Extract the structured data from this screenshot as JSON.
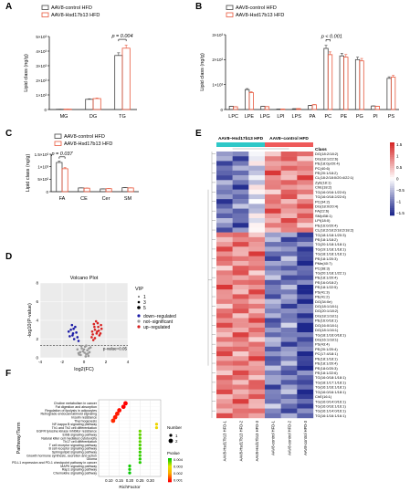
{
  "chart_data": [
    {
      "panel": "A",
      "type": "bar",
      "ylabel": "Lipid class (ng/g)",
      "ylim": [
        0,
        5000
      ],
      "yticks": [
        0,
        1000,
        2000,
        3000,
        4000,
        5000
      ],
      "ytick_labels": [
        "0",
        "1×10³",
        "2×10³",
        "3×10³",
        "4×10³",
        "5×10³"
      ],
      "categories": [
        "MG",
        "DG",
        "TG"
      ],
      "series": [
        {
          "name": "AAV8-control HFD",
          "color": "#444444",
          "values": [
            20,
            700,
            3700
          ]
        },
        {
          "name": "AAV8-Hsd17b13 HFD",
          "color": "#e8573c",
          "values": [
            25,
            750,
            4200
          ]
        }
      ],
      "annotations": [
        {
          "category": "TG",
          "text": "p = 0.004"
        }
      ]
    },
    {
      "panel": "B",
      "type": "bar",
      "ylabel": "Lipid class (ng/g)",
      "ylim": [
        0,
        3000
      ],
      "yticks": [
        0,
        1000,
        2000,
        3000
      ],
      "ytick_labels": [
        "0",
        "1×10³",
        "2×10³",
        "3×10³"
      ],
      "categories": [
        "LPC",
        "LPE",
        "LPG",
        "LPI",
        "LPS",
        "PA",
        "PC",
        "PE",
        "PG",
        "PI",
        "PS"
      ],
      "series": [
        {
          "name": "AAV8-control HFD",
          "color": "#444444",
          "values": [
            130,
            800,
            130,
            20,
            30,
            160,
            2450,
            2150,
            2000,
            140,
            1250
          ]
        },
        {
          "name": "AAV8-Hsd17b13 HFD",
          "color": "#e8573c",
          "values": [
            110,
            680,
            115,
            18,
            35,
            190,
            2200,
            2100,
            1950,
            130,
            1300
          ]
        }
      ],
      "annotations": [
        {
          "category": "PC",
          "text": "p < 0.001"
        }
      ]
    },
    {
      "panel": "C",
      "type": "bar",
      "ylabel": "Lipid class (ng/g)",
      "ylim": [
        0,
        1500
      ],
      "yticks": [
        0,
        500,
        1000,
        1500
      ],
      "ytick_labels": [
        "0",
        "5×10²",
        "1×10³",
        "1.5×10³"
      ],
      "categories": [
        "FA",
        "CE",
        "Cer",
        "SM"
      ],
      "series": [
        {
          "name": "AAV8-control HFD",
          "color": "#444444",
          "values": [
            1170,
            150,
            110,
            160
          ]
        },
        {
          "name": "AAV8-Hsd17b13 HFD",
          "color": "#e8573c",
          "values": [
            920,
            140,
            120,
            150
          ]
        }
      ],
      "annotations": [
        {
          "category": "FA",
          "text": "p = 0.037"
        }
      ]
    },
    {
      "panel": "D",
      "type": "scatter",
      "title": "Volcano Plot",
      "xlabel": "log2(FC)",
      "ylabel": "-log10(P-value)",
      "xlim": [
        -4,
        4
      ],
      "ylim": [
        0,
        8
      ],
      "xticks": [
        -4,
        -2,
        0,
        2,
        4
      ],
      "yticks": [
        0,
        2,
        4,
        6,
        8
      ],
      "threshold_label": "p-value=0.05",
      "legend_title": "VIP",
      "size_legend": [
        "1",
        "3",
        "5"
      ],
      "legend": [
        {
          "label": "down−regulated",
          "color": "#1a1aa6"
        },
        {
          "label": "not−significant",
          "color": "#9a9a9a"
        },
        {
          "label": "up−regulated",
          "color": "#d8201f"
        }
      ],
      "points": {
        "down": [
          [
            -1.2,
            3.0
          ],
          [
            -1.0,
            2.6
          ],
          [
            -0.8,
            3.3
          ],
          [
            -0.6,
            2.2
          ],
          [
            -1.4,
            2.8
          ],
          [
            -0.9,
            2.0
          ],
          [
            -1.1,
            3.5
          ],
          [
            -0.7,
            2.7
          ],
          [
            -1.3,
            2.3
          ],
          [
            -0.5,
            1.8
          ],
          [
            -0.95,
            3.1
          ],
          [
            -1.05,
            2.4
          ]
        ],
        "ns": [
          [
            -0.5,
            0.5
          ],
          [
            -0.3,
            0.3
          ],
          [
            0.2,
            0.4
          ],
          [
            0.3,
            0.8
          ],
          [
            -0.2,
            1.0
          ],
          [
            0.1,
            1.2
          ],
          [
            0.5,
            0.6
          ],
          [
            0.6,
            1.1
          ],
          [
            -0.6,
            0.9
          ],
          [
            0.4,
            0.2
          ],
          [
            -0.1,
            0.7
          ],
          [
            0.0,
            0.9
          ],
          [
            0.2,
            1.3
          ],
          [
            -0.35,
            0.6
          ],
          [
            0.45,
            1.0
          ],
          [
            0.15,
            0.15
          ],
          [
            -0.25,
            1.25
          ],
          [
            0.35,
            0.45
          ],
          [
            -0.45,
            0.35
          ],
          [
            0.05,
            0.55
          ]
        ],
        "up": [
          [
            0.8,
            2.5
          ],
          [
            1.0,
            3.0
          ],
          [
            1.2,
            2.8
          ],
          [
            0.9,
            3.6
          ],
          [
            1.3,
            3.3
          ],
          [
            1.5,
            2.6
          ],
          [
            0.7,
            2.2
          ],
          [
            1.1,
            3.9
          ],
          [
            1.4,
            2.4
          ],
          [
            0.85,
            1.9
          ],
          [
            1.25,
            3.7
          ],
          [
            1.6,
            3.1
          ],
          [
            1.0,
            2.1
          ],
          [
            1.35,
            2.9
          ],
          [
            0.95,
            3.3
          ],
          [
            1.15,
            2.6
          ],
          [
            1.55,
            3.5
          ],
          [
            0.75,
            2.8
          ]
        ]
      }
    },
    {
      "panel": "E",
      "type": "heatmap",
      "group_labels": [
        "AAV8−Hsd17b13 HFD",
        "AAV8−control HFD"
      ],
      "columns": [
        "AAV8-Hsd17b13 HFD-1",
        "AAV8-Hsd17b13 HFD-2",
        "AAV8-Hsd17b13 HFD-3",
        "AAV8-control HFD-1",
        "AAV8-control HFD-2",
        "AAV8-control HFD-3"
      ],
      "rows_title": "Class",
      "rows": [
        "DG(18:2/18:2)",
        "DG(18:1/22:6)",
        "PE(18:0p/20:4)",
        "PC(40:6)",
        "PE(20:1/18:2)",
        "CL(18:2/18:0/20:4/22:1)",
        "ZyE(18:1)",
        "ChE(18:2)",
        "TG(16:0/16:1/22:6)",
        "TG(16:0/18:2/22:6)",
        "PC(34:2)",
        "DG(18:0/20:4)",
        "FA(22:6)",
        "SM(d38:1)",
        "LPI(18:0)",
        "PE(16:0/20:4)",
        "CL(18:2/18:2/18:2/18:2)",
        "TG(18:1/18:1/20:3)",
        "PE(18:1/18:2)",
        "TG(20:1/18:1/18:1)",
        "TG(19:1/18:1/18:1)",
        "TG(18:1/18:1/18:1)",
        "PE(18:1/20:3)",
        "PMe(40:7)",
        "PC(38:3)",
        "TG(20:1/18:1/22:1)",
        "PE(18:1/20:4)",
        "PE(16:0/18:2)",
        "PE(18:1/22:5)",
        "PS(41:3)",
        "PE(41:2)",
        "DG(34:0e)",
        "DG(18:1/18:1)",
        "DG(20:1/18:2)",
        "DG(18:1/18:1)",
        "PE(16:0/18:1)",
        "DG(16:0/18:1)",
        "DG(18:1/16:1)",
        "TG(18:1/16:0/18:1)",
        "DG(16:1/18:1)",
        "PS(43:4)",
        "PE(20:1/20:4)",
        "PC(17:4/18:1)",
        "PE(18:1/18:1)",
        "PE(18:1/20:4)",
        "PE(18:0/20:3)",
        "PE(18:1/22:6)",
        "TG(16:0/18:1/18:1)",
        "TG(18:1/17:1/18:1)",
        "TG(16:1/16:1/18:1)",
        "TG(16:0/16:1/18:1)",
        "ChE(16:1)",
        "TG(16:0/14:0/16:1)",
        "TG(16:0/16:1/16:1)",
        "TG(16:1/14:0/16:1)",
        "TG(16:1/16:1/16:1)"
      ],
      "colorbar_ticks": [
        "1.5",
        "1",
        "0.5",
        "0",
        "−0.5",
        "−1",
        "−1.5"
      ],
      "vmin": -1.6,
      "vmax": 1.6
    },
    {
      "panel": "F",
      "type": "scatter",
      "ylabel": "Pathway/Term",
      "xlabel": "RichFactor",
      "xlim": [
        0.05,
        0.35
      ],
      "xticks": [
        0.1,
        0.15,
        0.2,
        0.25,
        0.3
      ],
      "xtick_labels": [
        "0.10",
        "0.15",
        "0.20",
        "0.25",
        "0.30"
      ],
      "size_legend_title": "Number",
      "size_legend": [
        "1",
        "2"
      ],
      "color_legend_title": "Pvalue",
      "color_legend_ticks": [
        "0.004",
        "0.003",
        "0.002",
        "0.001"
      ],
      "terms": [
        {
          "name": "Choline metabolism in cancer",
          "x": 0.18,
          "number": 2,
          "p": 0.0004
        },
        {
          "name": "Fat digestion and absorption",
          "x": 0.17,
          "number": 2,
          "p": 0.0004
        },
        {
          "name": "Regulation of lipolysis in adipocytes",
          "x": 0.15,
          "number": 2,
          "p": 0.0005
        },
        {
          "name": "Retrograde endocannabinoid signaling",
          "x": 0.14,
          "number": 2,
          "p": 0.0006
        },
        {
          "name": "Insulin resistance",
          "x": 0.13,
          "number": 2,
          "p": 0.0006
        },
        {
          "name": "Thermogenesis",
          "x": 0.12,
          "number": 2,
          "p": 0.0007
        },
        {
          "name": "NF-kappa B signaling pathway",
          "x": 0.33,
          "number": 1,
          "p": 0.0025
        },
        {
          "name": "Th1 and Th2 cell differentiation",
          "x": 0.33,
          "number": 1,
          "p": 0.0026
        },
        {
          "name": "EGFR tyrosine kinase inhibitor resistance",
          "x": 0.25,
          "number": 1,
          "p": 0.0035
        },
        {
          "name": "ErbB signaling pathway",
          "x": 0.25,
          "number": 1,
          "p": 0.0036
        },
        {
          "name": "Natural killer cell mediated cytotoxicity",
          "x": 0.25,
          "number": 1,
          "p": 0.0036
        },
        {
          "name": "Th17 cell differentiation",
          "x": 0.25,
          "number": 1,
          "p": 0.0036
        },
        {
          "name": "T cell receptor signaling pathway",
          "x": 0.25,
          "number": 1,
          "p": 0.0037
        },
        {
          "name": "B cell receptor signaling pathway",
          "x": 0.25,
          "number": 1,
          "p": 0.0037
        },
        {
          "name": "Sphingolipid signaling pathway",
          "x": 0.25,
          "number": 1,
          "p": 0.0038
        },
        {
          "name": "Growth hormone synthesis, secretion and action",
          "x": 0.25,
          "number": 1,
          "p": 0.0038
        },
        {
          "name": "Glioma",
          "x": 0.25,
          "number": 1,
          "p": 0.0039
        },
        {
          "name": "PD-L1 expression and PD-1 checkpoint pathway in cancer",
          "x": 0.25,
          "number": 1,
          "p": 0.0039
        },
        {
          "name": "MAPK signaling pathway",
          "x": 0.2,
          "number": 1,
          "p": 0.004
        },
        {
          "name": "Rap1 signaling pathway",
          "x": 0.2,
          "number": 1,
          "p": 0.004
        },
        {
          "name": "Chemokine signaling pathway",
          "x": 0.2,
          "number": 1,
          "p": 0.0041
        }
      ]
    }
  ]
}
